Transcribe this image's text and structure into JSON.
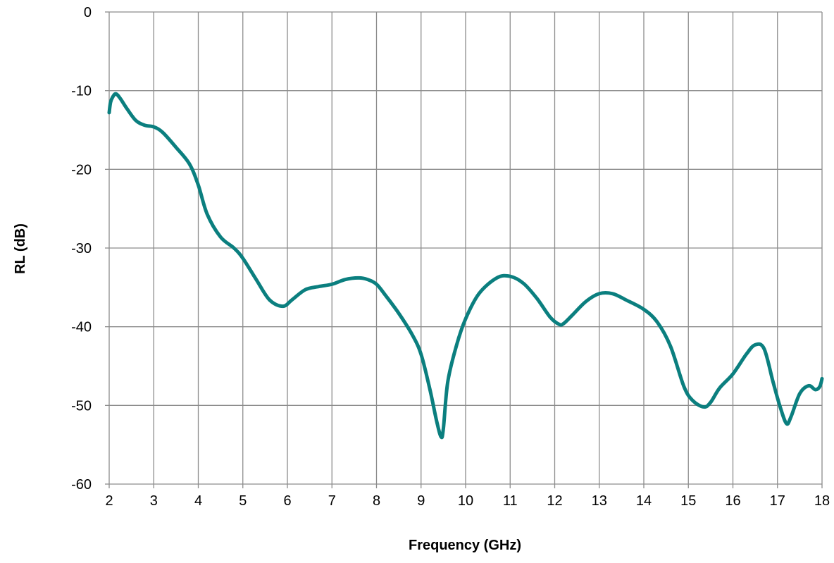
{
  "chart_data": {
    "type": "line",
    "title": "",
    "xlabel": "Frequency (GHz)",
    "ylabel": "RL (dB)",
    "xlim": [
      2,
      18
    ],
    "ylim": [
      -60,
      0
    ],
    "x_ticks": [
      "2",
      "3",
      "4",
      "5",
      "6",
      "7",
      "8",
      "9",
      "10",
      "11",
      "12",
      "13",
      "14",
      "15",
      "16",
      "17",
      "18"
    ],
    "y_ticks": [
      "0",
      "-10",
      "-20",
      "-30",
      "-40",
      "-50",
      "-60"
    ],
    "grid": true,
    "legend": "none",
    "series": [
      {
        "color": "#0b7f7f",
        "x": [
          2.0,
          2.03,
          2.08,
          2.15,
          2.25,
          2.4,
          2.6,
          2.8,
          3.0,
          3.2,
          3.5,
          3.8,
          4.0,
          4.2,
          4.5,
          4.8,
          5.0,
          5.3,
          5.6,
          5.9,
          6.1,
          6.4,
          6.7,
          7.0,
          7.3,
          7.6,
          7.8,
          8.0,
          8.2,
          8.5,
          8.8,
          9.0,
          9.2,
          9.35,
          9.45,
          9.5,
          9.6,
          9.8,
          10.0,
          10.3,
          10.7,
          11.0,
          11.3,
          11.6,
          11.9,
          12.1,
          12.2,
          12.4,
          12.7,
          13.0,
          13.3,
          13.6,
          14.0,
          14.3,
          14.6,
          14.9,
          15.1,
          15.35,
          15.5,
          15.7,
          16.0,
          16.3,
          16.5,
          16.7,
          16.9,
          17.05,
          17.2,
          17.3,
          17.5,
          17.7,
          17.85,
          17.95,
          18.0
        ],
        "y": [
          -12.8,
          -11.5,
          -10.8,
          -10.4,
          -11.0,
          -12.3,
          -13.8,
          -14.4,
          -14.6,
          -15.3,
          -17.2,
          -19.3,
          -22.0,
          -25.7,
          -28.6,
          -30.0,
          -31.3,
          -34.0,
          -36.6,
          -37.4,
          -36.6,
          -35.3,
          -34.9,
          -34.6,
          -34.0,
          -33.8,
          -34.0,
          -34.6,
          -36.0,
          -38.3,
          -41.0,
          -43.5,
          -48.0,
          -52.0,
          -54.0,
          -53.0,
          -47.0,
          -42.3,
          -39.0,
          -35.8,
          -33.8,
          -33.6,
          -34.5,
          -36.4,
          -38.8,
          -39.7,
          -39.6,
          -38.5,
          -36.8,
          -35.8,
          -35.8,
          -36.6,
          -37.8,
          -39.4,
          -42.5,
          -47.6,
          -49.4,
          -50.2,
          -49.6,
          -47.8,
          -46.0,
          -43.5,
          -42.3,
          -42.8,
          -47.0,
          -50.0,
          -52.3,
          -51.5,
          -48.5,
          -47.5,
          -48.0,
          -47.6,
          -46.6
        ]
      }
    ]
  }
}
